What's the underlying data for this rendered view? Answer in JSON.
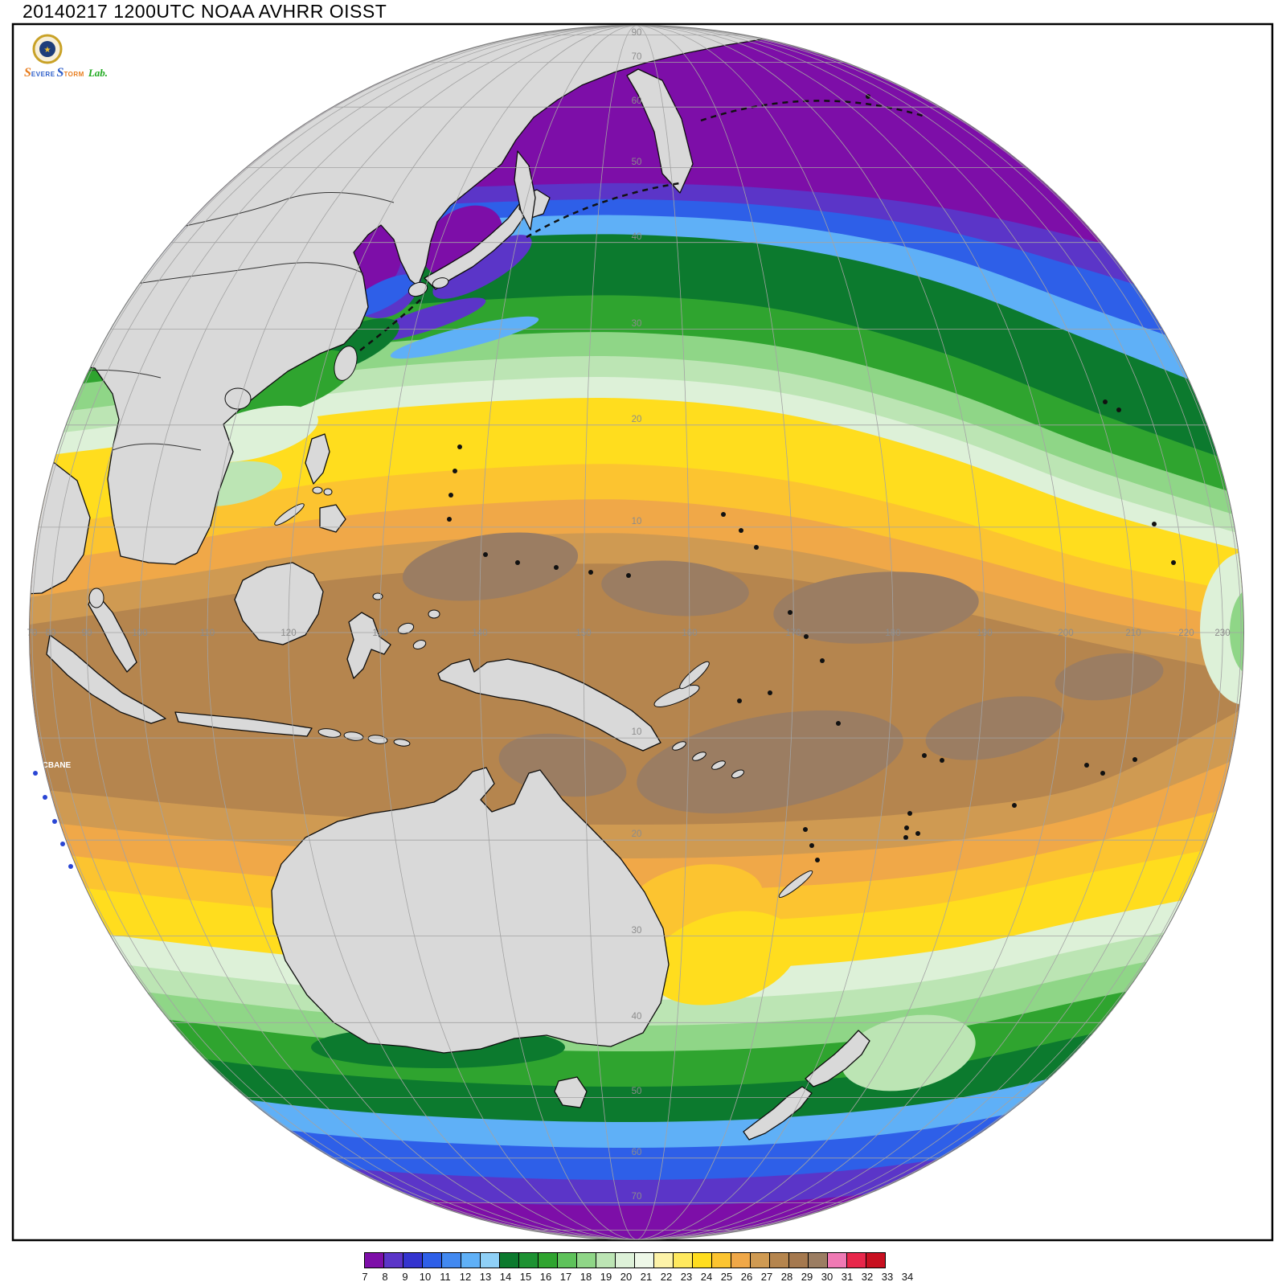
{
  "title": "20140217 1200UTC NOAA AVHRR OISST",
  "logo": {
    "severe_s": "S",
    "severe_rest": "EVERE",
    "storm_s": "S",
    "storm_rest": "TORM",
    "lab": "Lab.",
    "emblem_glyph": "★"
  },
  "map": {
    "station_label": "SCBANE",
    "pole_label": "90",
    "lon_labels": [
      70,
      80,
      90,
      100,
      110,
      120,
      130,
      140,
      150,
      160,
      170,
      180,
      190,
      200,
      210,
      220,
      230
    ],
    "lat_labels": {
      "north": [
        10,
        20,
        30,
        40,
        50,
        60,
        70
      ],
      "south": [
        10,
        20,
        30,
        40,
        50,
        60,
        70
      ]
    },
    "grid_color": "#a3a3a3",
    "grid_label_color": "#8c8c8c",
    "land_color": "#d9d9d9",
    "coast_color": "#0d0d0d",
    "background": "#ffffff"
  },
  "palette": {
    "purple": "#7d0ea8",
    "violet": "#5b35c8",
    "blue": "#2e5fe8",
    "lightblue": "#5fb0f7",
    "darkgreen": "#0c7a2e",
    "green": "#2fa42f",
    "lightgreen": "#8fd687",
    "palegreen": "#bce5b4",
    "mint": "#ddf1d8",
    "yellow": "#ffdd1e",
    "amber": "#fcc430",
    "orange": "#f0a848",
    "tan": "#cf9a52",
    "brown": "#b5854e",
    "darkbrown": "#9b7d62",
    "marker_blue": "#2a46d4"
  },
  "colorbar": {
    "ticks": [
      7,
      8,
      9,
      10,
      11,
      12,
      13,
      14,
      15,
      16,
      17,
      18,
      19,
      20,
      21,
      22,
      23,
      24,
      25,
      26,
      27,
      28,
      29,
      30,
      31,
      32,
      33,
      34
    ],
    "colors": [
      "#7d0ea8",
      "#5b35c8",
      "#3434cf",
      "#2e5fe8",
      "#4289f0",
      "#5fb0f7",
      "#8fd0f7",
      "#0c7a2e",
      "#1d9232",
      "#2fa42f",
      "#5ec25a",
      "#8fd687",
      "#bce5b4",
      "#ddf1d8",
      "#eef8e8",
      "#fdf3a8",
      "#ffe95e",
      "#ffdd1e",
      "#fcc430",
      "#f0a848",
      "#cf9a52",
      "#b5854e",
      "#a5794f",
      "#9b7d62",
      "#ef7ab4",
      "#e8274b",
      "#c81020"
    ]
  }
}
